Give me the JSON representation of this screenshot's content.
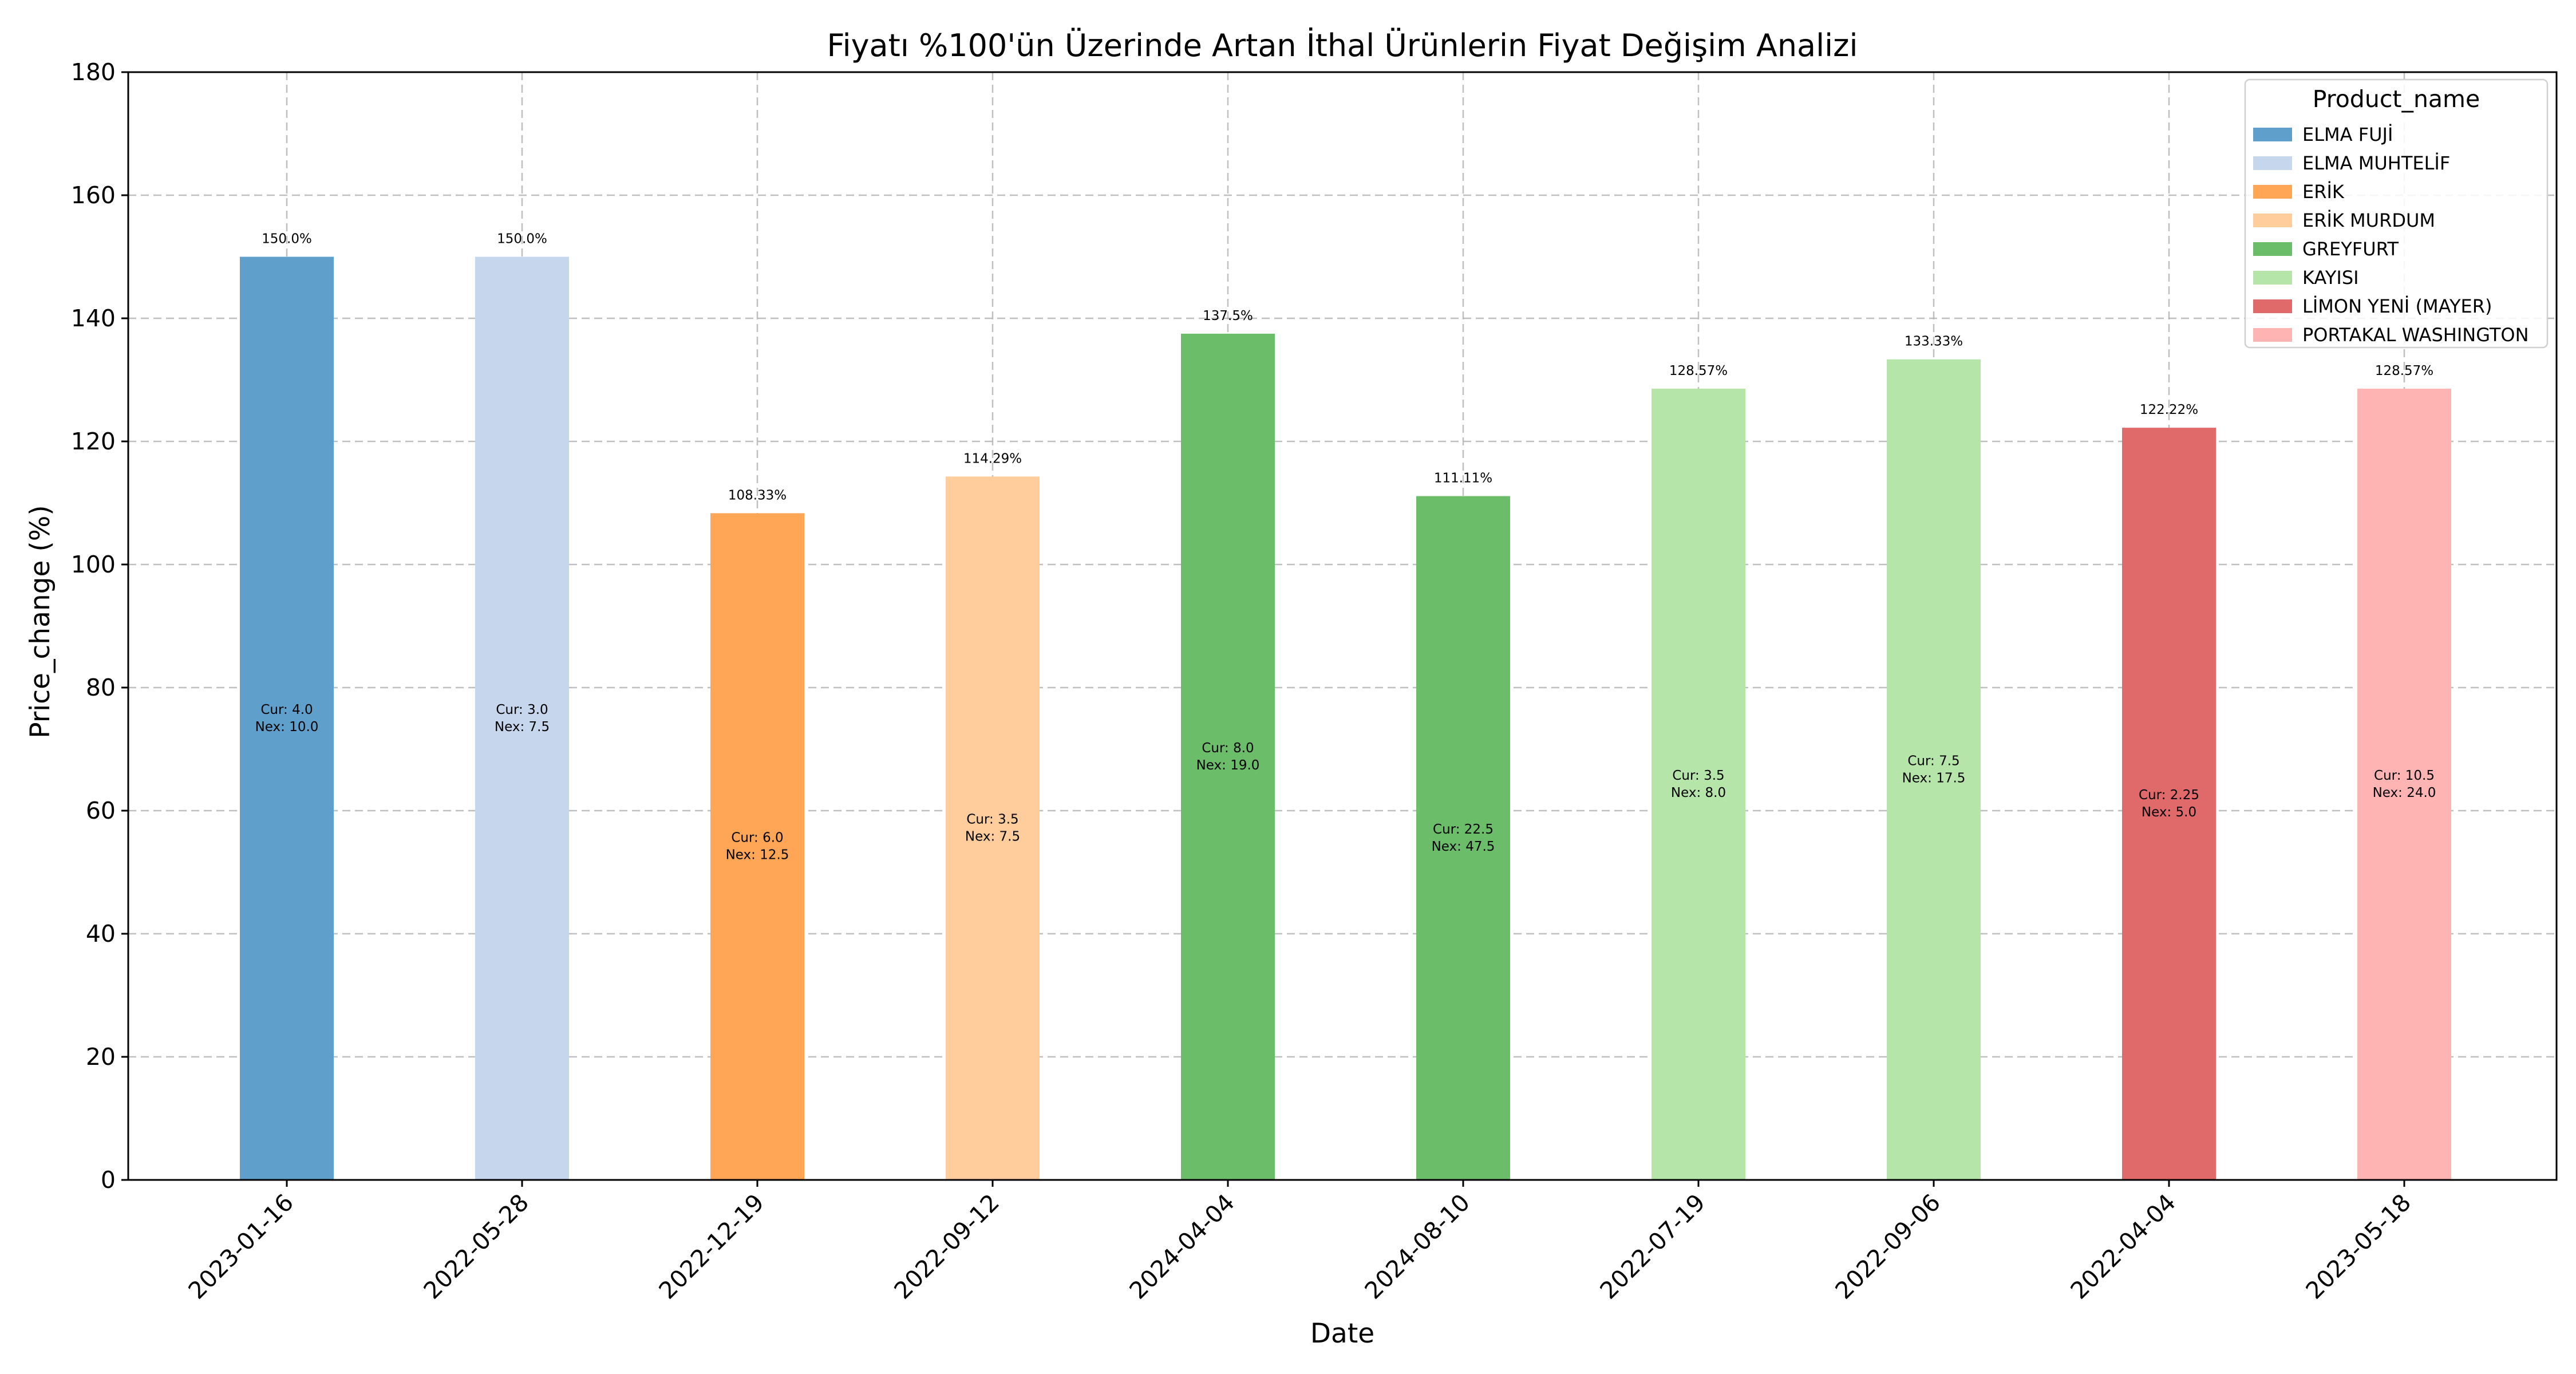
{
  "chart_data": {
    "type": "bar",
    "title": "Fiyatı %100'ün Üzerinde Artan İthal Ürünlerin Fiyat Değişim Analizi",
    "xlabel": "Date",
    "ylabel": "Price_change (%)",
    "ylim": [
      0,
      180
    ],
    "yticks": [
      0,
      20,
      40,
      60,
      80,
      100,
      120,
      140,
      160,
      180
    ],
    "grid": true,
    "legend": {
      "title": "Product_name",
      "placement": "top-right",
      "entries": [
        {
          "name": "ELMA FUJİ",
          "color": "#5f9fcc"
        },
        {
          "name": "ELMA MUHTELİF",
          "color": "#c6d6ed"
        },
        {
          "name": "ERİK",
          "color": "#ffa556"
        },
        {
          "name": "ERİK  MURDUM",
          "color": "#ffcd9b"
        },
        {
          "name": "GREYFURT",
          "color": "#6bbd69"
        },
        {
          "name": "KAYISI",
          "color": "#b5e5a9"
        },
        {
          "name": "LİMON  YENİ (MAYER)",
          "color": "#e0696a"
        },
        {
          "name": "PORTAKAL WASHINGTON",
          "color": "#ffb4b4"
        }
      ]
    },
    "bars": [
      {
        "date": "2023-01-16",
        "product": "ELMA FUJİ",
        "value": 150.0,
        "label": "150.0%",
        "cur": "Cur: 4.0",
        "nex": "Nex: 10.0",
        "color": "#5f9fcc"
      },
      {
        "date": "2022-05-28",
        "product": "ELMA MUHTELİF",
        "value": 150.0,
        "label": "150.0%",
        "cur": "Cur: 3.0",
        "nex": "Nex: 7.5",
        "color": "#c6d6ed"
      },
      {
        "date": "2022-12-19",
        "product": "ERİK",
        "value": 108.33,
        "label": "108.33%",
        "cur": "Cur: 6.0",
        "nex": "Nex: 12.5",
        "color": "#ffa556"
      },
      {
        "date": "2022-09-12",
        "product": "ERİK  MURDUM",
        "value": 114.29,
        "label": "114.29%",
        "cur": "Cur: 3.5",
        "nex": "Nex: 7.5",
        "color": "#ffcd9b"
      },
      {
        "date": "2024-04-04",
        "product": "GREYFURT",
        "value": 137.5,
        "label": "137.5%",
        "cur": "Cur: 8.0",
        "nex": "Nex: 19.0",
        "color": "#6bbd69"
      },
      {
        "date": "2024-08-10",
        "product": "GREYFURT",
        "value": 111.11,
        "label": "111.11%",
        "cur": "Cur: 22.5",
        "nex": "Nex: 47.5",
        "color": "#6bbd69"
      },
      {
        "date": "2022-07-19",
        "product": "KAYISI",
        "value": 128.57,
        "label": "128.57%",
        "cur": "Cur: 3.5",
        "nex": "Nex: 8.0",
        "color": "#b5e5a9"
      },
      {
        "date": "2022-09-06",
        "product": "KAYISI",
        "value": 133.33,
        "label": "133.33%",
        "cur": "Cur: 7.5",
        "nex": "Nex: 17.5",
        "color": "#b5e5a9"
      },
      {
        "date": "2022-04-04",
        "product": "LİMON  YENİ (MAYER)",
        "value": 122.22,
        "label": "122.22%",
        "cur": "Cur: 2.25",
        "nex": "Nex: 5.0",
        "color": "#e0696a"
      },
      {
        "date": "2023-05-18",
        "product": "PORTAKAL WASHINGTON",
        "value": 128.57,
        "label": "128.57%",
        "cur": "Cur: 10.5",
        "nex": "Nex: 24.0",
        "color": "#ffb4b4"
      }
    ]
  }
}
